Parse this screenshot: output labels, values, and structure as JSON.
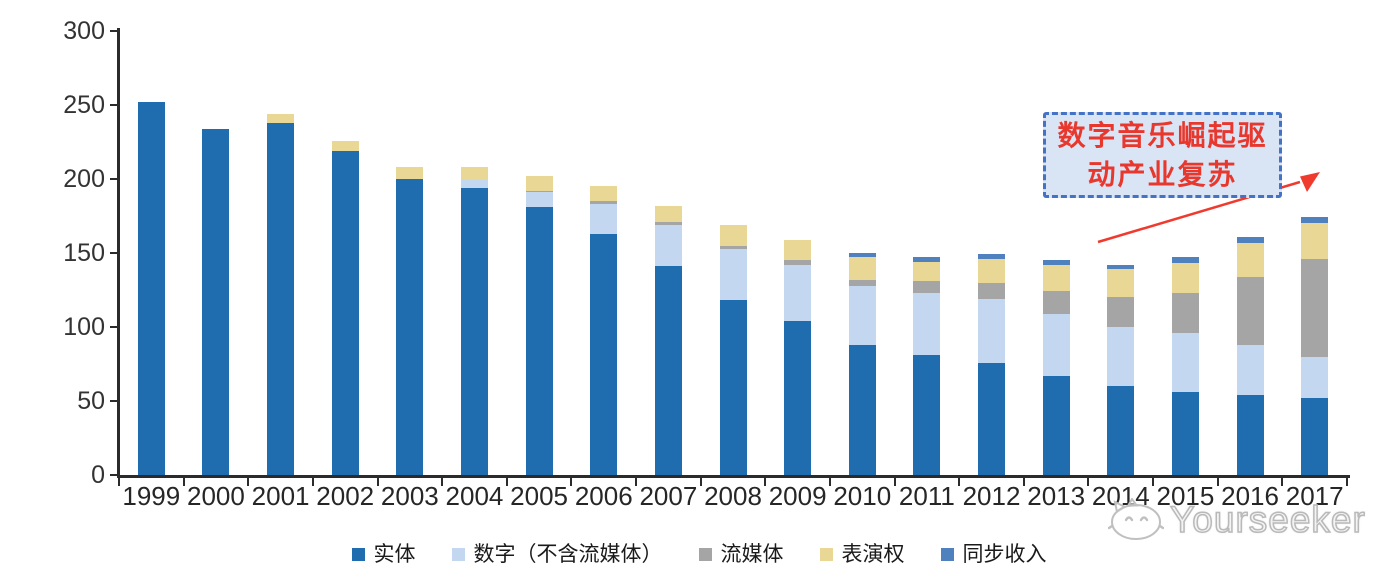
{
  "chart_data": {
    "type": "bar",
    "stacked": true,
    "title": "",
    "xlabel": "",
    "ylabel": "",
    "categories": [
      "1999",
      "2000",
      "2001",
      "2002",
      "2003",
      "2004",
      "2005",
      "2006",
      "2007",
      "2008",
      "2009",
      "2010",
      "2011",
      "2012",
      "2013",
      "2014",
      "2015",
      "2016",
      "2017"
    ],
    "series": [
      {
        "key": "physical",
        "name": "实体",
        "color": "#1F6DAF",
        "values": [
          252,
          234,
          238,
          219,
          200,
          194,
          181,
          163,
          141,
          118,
          104,
          88,
          81,
          76,
          67,
          60,
          56,
          54,
          52
        ]
      },
      {
        "key": "digital",
        "name": "数字（不含流媒体）",
        "color": "#C3D8F0",
        "values": [
          0,
          0,
          0,
          0,
          0,
          5,
          10,
          20,
          28,
          35,
          38,
          40,
          42,
          43,
          42,
          40,
          40,
          34,
          28
        ]
      },
      {
        "key": "streaming",
        "name": "流媒体",
        "color": "#A5A5A5",
        "values": [
          0,
          0,
          0,
          0,
          0,
          0,
          1,
          2,
          2,
          2,
          3,
          4,
          8,
          11,
          15,
          20,
          27,
          46,
          66
        ]
      },
      {
        "key": "performance",
        "name": "表演权",
        "color": "#E9D795",
        "values": [
          0,
          0,
          6,
          7,
          8,
          9,
          10,
          10,
          11,
          14,
          14,
          15,
          13,
          16,
          18,
          19,
          20,
          23,
          24
        ]
      },
      {
        "key": "sync",
        "name": "同步收入",
        "color": "#4E81BD",
        "values": [
          0,
          0,
          0,
          0,
          0,
          0,
          0,
          0,
          0,
          0,
          0,
          3,
          3,
          3,
          3,
          3,
          4,
          4,
          4
        ]
      }
    ],
    "totals": [
      252,
      234,
      244,
      226,
      208,
      208,
      202,
      195,
      182,
      169,
      159,
      150,
      147,
      149,
      145,
      142,
      147,
      161,
      174
    ],
    "ylim": [
      0,
      300
    ],
    "yticks": [
      "0",
      "50",
      "100",
      "150",
      "200",
      "250",
      "300"
    ],
    "grid": false,
    "legend_position": "bottom"
  },
  "annotation": {
    "line1": "数字音乐崛起驱",
    "line2": "动产业复苏",
    "text_color": "#E8382E",
    "border_color": "#4472C4",
    "fill_color": "#D9E4F5",
    "arrow_color": "#F03A2E"
  },
  "watermark": {
    "text": "Yourseeker",
    "icon": "cat-logo",
    "color": "#bdbdbd"
  }
}
